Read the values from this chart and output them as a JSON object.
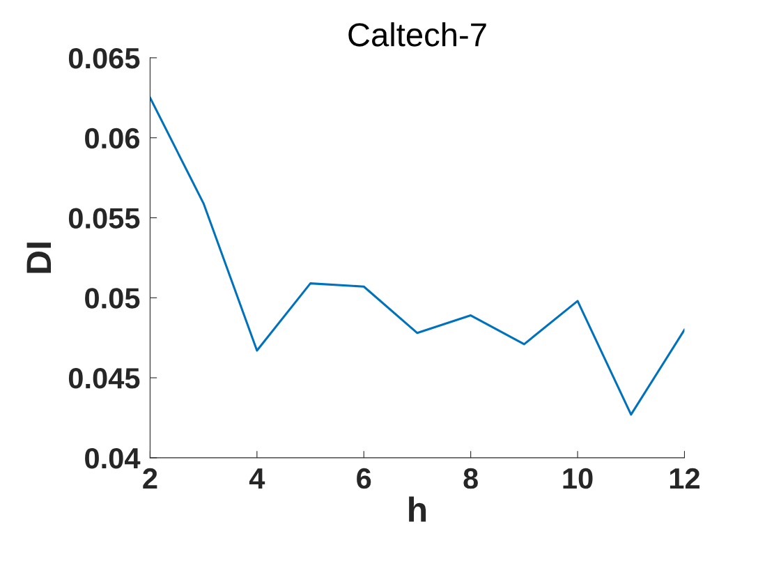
{
  "chart_data": {
    "type": "line",
    "title": "Caltech-7",
    "xlabel": "h",
    "ylabel": "DI",
    "x": [
      2,
      3,
      4,
      5,
      6,
      7,
      8,
      9,
      10,
      11,
      12
    ],
    "series": [
      {
        "color": "#0072bd",
        "values": [
          0.0625,
          0.0559,
          0.0467,
          0.0509,
          0.0507,
          0.0478,
          0.0489,
          0.0471,
          0.0498,
          0.0427,
          0.048
        ]
      }
    ],
    "xlim": [
      2,
      12
    ],
    "xticks": [
      2,
      4,
      6,
      8,
      10,
      12
    ],
    "ylim": [
      0.04,
      0.065
    ],
    "yticks": [
      0.04,
      0.045,
      0.05,
      0.055,
      0.06,
      0.065
    ],
    "grid": false,
    "legend": false,
    "marker": "none",
    "line_style": "solid"
  }
}
